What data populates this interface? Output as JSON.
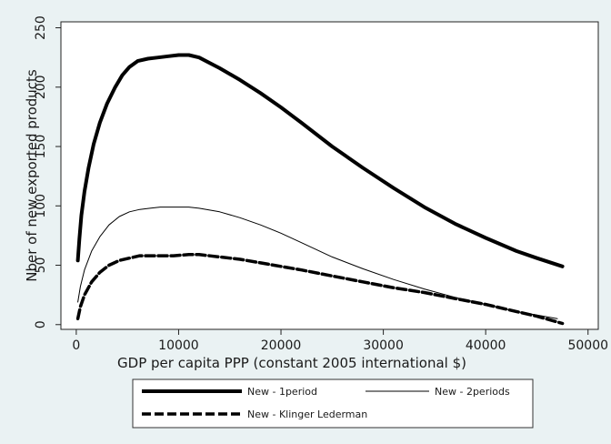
{
  "chart_data": {
    "type": "line",
    "title": "",
    "xlabel": "GDP per capita PPP (constant 2005 international $)",
    "ylabel": "Nber of new exported products",
    "xlim": [
      -1500,
      51000
    ],
    "ylim": [
      -4,
      255
    ],
    "xticks": [
      0,
      10000,
      20000,
      30000,
      40000,
      50000
    ],
    "yticks": [
      0,
      50,
      100,
      150,
      200,
      250
    ],
    "grid": false,
    "legend_position": "bottom",
    "series": [
      {
        "name": "New - 1period",
        "color": "#000000",
        "style": "thick",
        "x": [
          150,
          300,
          500,
          800,
          1200,
          1700,
          2300,
          3000,
          3800,
          4500,
          5200,
          6000,
          7000,
          8000,
          9000,
          10000,
          11000,
          12000,
          14000,
          16000,
          18000,
          20000,
          22000,
          25000,
          28000,
          31000,
          34000,
          37000,
          40000,
          43000,
          45000,
          47500
        ],
        "y": [
          54,
          72,
          92,
          112,
          132,
          152,
          170,
          186,
          200,
          210,
          217,
          222,
          224,
          225,
          226,
          227,
          227,
          225,
          216,
          206,
          195,
          183,
          170,
          150,
          132,
          115,
          99,
          85,
          73,
          62,
          56,
          49
        ]
      },
      {
        "name": "New - 2periods",
        "color": "#000000",
        "style": "thin",
        "x": [
          150,
          400,
          800,
          1500,
          2300,
          3200,
          4200,
          5200,
          6200,
          7200,
          8200,
          9500,
          11000,
          12000,
          14000,
          16000,
          18000,
          20000,
          22000,
          25000,
          28000,
          31000,
          34000,
          37000,
          40000,
          43000,
          45000,
          47000
        ],
        "y": [
          19,
          32,
          46,
          62,
          74,
          84,
          91,
          95,
          97,
          98,
          99,
          99,
          99,
          98,
          95,
          90,
          84,
          77,
          69,
          57,
          47,
          38,
          30,
          23,
          17,
          11,
          8,
          5
        ]
      },
      {
        "name": "New - Klinger Lederman",
        "color": "#000000",
        "style": "dashed",
        "x": [
          150,
          400,
          800,
          1500,
          2300,
          3200,
          4200,
          5200,
          6200,
          7200,
          8200,
          9500,
          11000,
          12000,
          14000,
          16000,
          18000,
          20000,
          22000,
          25000,
          28000,
          31000,
          34000,
          37000,
          40000,
          43000,
          45000,
          47500
        ],
        "y": [
          5,
          15,
          25,
          36,
          44,
          50,
          54,
          56,
          58,
          58,
          58,
          58,
          59,
          59,
          57,
          55,
          52,
          49,
          46,
          41,
          36,
          31,
          27,
          22,
          17,
          11,
          7,
          1
        ]
      }
    ]
  }
}
